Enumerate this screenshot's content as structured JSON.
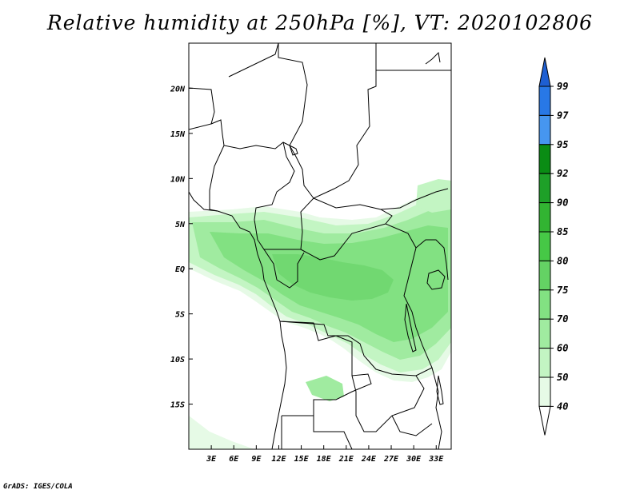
{
  "title": "Relative humidity at 250hPa [%], VT: 2020102806",
  "credit": "GrADS: IGES/COLA",
  "map": {
    "variable": "Relative humidity",
    "level": "250hPa",
    "units": "%",
    "valid_time": "2020102806",
    "lon_range": [
      0,
      35
    ],
    "lat_range": [
      -20,
      25
    ],
    "lon_ticks": [
      "3E",
      "6E",
      "9E",
      "12E",
      "15E",
      "18E",
      "21E",
      "24E",
      "27E",
      "30E",
      "33E"
    ],
    "lat_ticks": [
      "20N",
      "15N",
      "10N",
      "5N",
      "EQ",
      "5S",
      "10S",
      "15S"
    ],
    "lon_tick_values": [
      3,
      6,
      9,
      12,
      15,
      18,
      21,
      24,
      27,
      30,
      33
    ],
    "lat_tick_values": [
      20,
      15,
      10,
      5,
      0,
      -5,
      -10,
      -15
    ]
  },
  "colorbar": {
    "levels": [
      "99",
      "97",
      "95",
      "92",
      "90",
      "85",
      "80",
      "75",
      "70",
      "60",
      "50",
      "40"
    ],
    "colors": [
      "#1e5fd2",
      "#2878e6",
      "#4696f0",
      "#0a8c14",
      "#1ea028",
      "#32b432",
      "#46c846",
      "#64d264",
      "#82e182",
      "#a0eba0",
      "#c3f5c3",
      "#e6fae6"
    ]
  }
}
